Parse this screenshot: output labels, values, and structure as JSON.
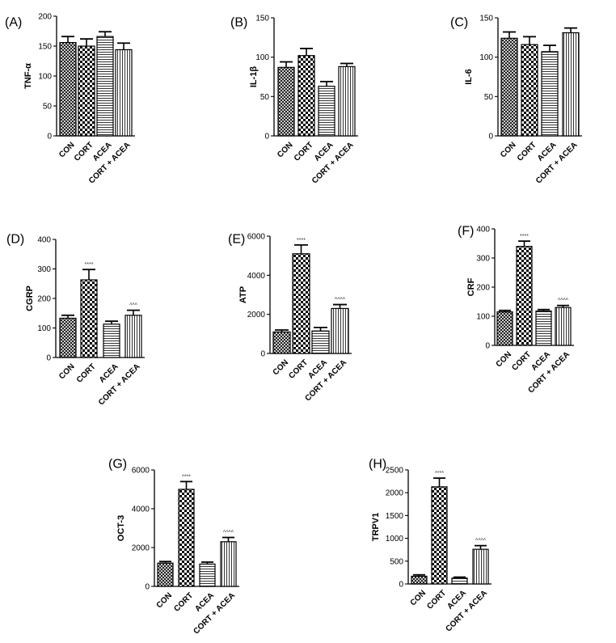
{
  "chart_data": [
    {
      "type": "bar",
      "panel": "(A)",
      "ylabel": "TNF-α",
      "categories": [
        "CON",
        "CORT",
        "ACEA",
        "CORT + ACEA"
      ],
      "values": [
        156,
        150,
        166,
        144
      ],
      "errors": [
        10,
        12,
        8,
        11
      ],
      "significance": [
        "",
        "",
        "",
        ""
      ],
      "ylim": [
        0,
        200
      ],
      "yticks": [
        0,
        50,
        100,
        150,
        200
      ]
    },
    {
      "type": "bar",
      "panel": "(B)",
      "ylabel": "IL-1β",
      "categories": [
        "CON",
        "CORT",
        "ACEA",
        "CORT + ACEA"
      ],
      "values": [
        87,
        102,
        63,
        88
      ],
      "errors": [
        7,
        9,
        6,
        4
      ],
      "significance": [
        "",
        "",
        "",
        ""
      ],
      "ylim": [
        0,
        150
      ],
      "yticks": [
        0,
        50,
        100,
        150
      ]
    },
    {
      "type": "bar",
      "panel": "(C)",
      "ylabel": "IL-6",
      "categories": [
        "CON",
        "CORT",
        "ACEA",
        "CORT + ACEA"
      ],
      "values": [
        124,
        116,
        107,
        131
      ],
      "errors": [
        8,
        10,
        8,
        6
      ],
      "significance": [
        "",
        "",
        "",
        ""
      ],
      "ylim": [
        0,
        150
      ],
      "yticks": [
        0,
        50,
        100,
        150
      ]
    },
    {
      "type": "bar",
      "panel": "(D)",
      "ylabel": "CGRP",
      "categories": [
        "CON",
        "CORT",
        "ACEA",
        "CORT + ACEA"
      ],
      "values": [
        133,
        263,
        113,
        143
      ],
      "errors": [
        10,
        35,
        10,
        17
      ],
      "significance": [
        "",
        "****",
        "",
        "^^^"
      ],
      "ylim": [
        0,
        400
      ],
      "yticks": [
        0,
        100,
        200,
        300,
        400
      ]
    },
    {
      "type": "bar",
      "panel": "(E)",
      "ylabel": "ATP",
      "categories": [
        "CON",
        "CORT",
        "ACEA",
        "CORT + ACEA"
      ],
      "values": [
        1100,
        5100,
        1150,
        2300
      ],
      "errors": [
        100,
        450,
        180,
        200
      ],
      "significance": [
        "",
        "****",
        "",
        "^^^^"
      ],
      "ylim": [
        0,
        6000
      ],
      "yticks": [
        0,
        2000,
        4000,
        6000
      ]
    },
    {
      "type": "bar",
      "panel": "(F)",
      "ylabel": "CRF",
      "categories": [
        "CON",
        "CORT",
        "ACEA",
        "CORT + ACEA"
      ],
      "values": [
        115,
        340,
        118,
        130
      ],
      "errors": [
        5,
        18,
        5,
        7
      ],
      "significance": [
        "",
        "****",
        "",
        "^^^^"
      ],
      "ylim": [
        0,
        400
      ],
      "yticks": [
        0,
        100,
        200,
        300,
        400
      ]
    },
    {
      "type": "bar",
      "panel": "(G)",
      "ylabel": "OCT-3",
      "categories": [
        "CON",
        "CORT",
        "ACEA",
        "CORT + ACEA"
      ],
      "values": [
        1200,
        5000,
        1150,
        2300
      ],
      "errors": [
        80,
        400,
        100,
        220
      ],
      "significance": [
        "",
        "****",
        "",
        "^^^^"
      ],
      "ylim": [
        0,
        6000
      ],
      "yticks": [
        0,
        2000,
        4000,
        6000
      ]
    },
    {
      "type": "bar",
      "panel": "(H)",
      "ylabel": "TRPV1",
      "categories": [
        "CON",
        "CORT",
        "ACEA",
        "CORT + ACEA"
      ],
      "values": [
        170,
        2130,
        130,
        760
      ],
      "errors": [
        30,
        190,
        20,
        80
      ],
      "significance": [
        "",
        "****",
        "",
        "^^^^"
      ],
      "ylim": [
        0,
        2500
      ],
      "yticks": [
        0,
        500,
        1000,
        1500,
        2000,
        2500
      ]
    }
  ]
}
